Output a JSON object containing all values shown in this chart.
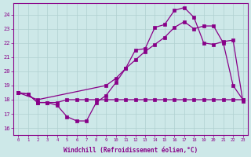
{
  "xlabel": "Windchill (Refroidissement éolien,°C)",
  "xlim": [
    -0.5,
    23.5
  ],
  "ylim": [
    15.5,
    24.8
  ],
  "xticks": [
    0,
    1,
    2,
    3,
    4,
    5,
    6,
    7,
    8,
    9,
    10,
    11,
    12,
    13,
    14,
    15,
    16,
    17,
    18,
    19,
    20,
    21,
    22,
    23
  ],
  "yticks": [
    16,
    17,
    18,
    19,
    20,
    21,
    22,
    23,
    24
  ],
  "bg_color": "#cde8e8",
  "line_color": "#880088",
  "grid_color": "#b0d0d0",
  "curve1_x": [
    0,
    1,
    2,
    3,
    4,
    5,
    6,
    7,
    8,
    9,
    10,
    11,
    12,
    13,
    14,
    15,
    16,
    17,
    18,
    19,
    20,
    21,
    22,
    23
  ],
  "curve1_y": [
    18.5,
    18.4,
    17.8,
    17.8,
    17.6,
    16.8,
    16.5,
    16.5,
    17.8,
    18.3,
    19.2,
    20.2,
    21.5,
    21.6,
    23.1,
    23.3,
    24.3,
    24.5,
    23.8,
    22.0,
    21.9,
    22.1,
    22.2,
    17.9
  ],
  "curve2_x": [
    0,
    1,
    2,
    3,
    4,
    5,
    6,
    7,
    8,
    9,
    10,
    11,
    12,
    13,
    14,
    15,
    16,
    17,
    18,
    19,
    20,
    21,
    22,
    23
  ],
  "curve2_y": [
    18.5,
    18.4,
    17.8,
    17.8,
    17.8,
    18.0,
    18.0,
    18.0,
    18.0,
    18.0,
    18.0,
    18.0,
    18.0,
    18.0,
    18.0,
    18.0,
    18.0,
    18.0,
    18.0,
    18.0,
    18.0,
    18.0,
    18.0,
    18.0
  ],
  "curve3_x": [
    0,
    2,
    9,
    10,
    11,
    12,
    13,
    14,
    15,
    16,
    17,
    18,
    19,
    20,
    21,
    22,
    23
  ],
  "curve3_y": [
    18.5,
    18.0,
    19.0,
    19.5,
    20.2,
    20.8,
    21.4,
    21.9,
    22.4,
    23.1,
    23.5,
    23.0,
    23.2,
    23.2,
    22.0,
    19.0,
    18.0
  ]
}
